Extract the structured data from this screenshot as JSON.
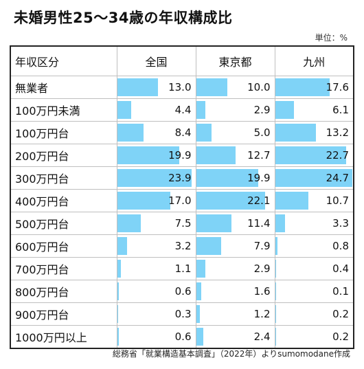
{
  "title": "未婚男性25～34歳の年収構成比",
  "unit": "単位：%",
  "source": "総務省「就業構造基本調査」（2022年）よりsumomodane作成",
  "chart_data": {
    "type": "table",
    "header": "年収区分",
    "xlim": [
      0,
      25
    ],
    "columns": [
      "全国",
      "東京都",
      "九州"
    ],
    "categories": [
      "無業者",
      "100万円未満",
      "100万円台",
      "200万円台",
      "300万円台",
      "400万円台",
      "500万円台",
      "600万円台",
      "700万円台",
      "800万円台",
      "900万円台",
      "1000万円以上"
    ],
    "series": [
      {
        "name": "全国",
        "values": [
          13.0,
          4.4,
          8.4,
          19.9,
          23.9,
          17.0,
          7.5,
          3.2,
          1.1,
          0.6,
          0.3,
          0.6
        ]
      },
      {
        "name": "東京都",
        "values": [
          10.0,
          2.9,
          5.0,
          12.7,
          19.9,
          22.1,
          11.4,
          7.9,
          2.9,
          1.6,
          1.2,
          2.4
        ]
      },
      {
        "name": "九州",
        "values": [
          17.6,
          6.1,
          13.2,
          22.7,
          24.7,
          10.7,
          3.3,
          0.8,
          0.4,
          0.1,
          0.2,
          0.2
        ]
      }
    ],
    "bar_color": "#7fd3f7"
  }
}
